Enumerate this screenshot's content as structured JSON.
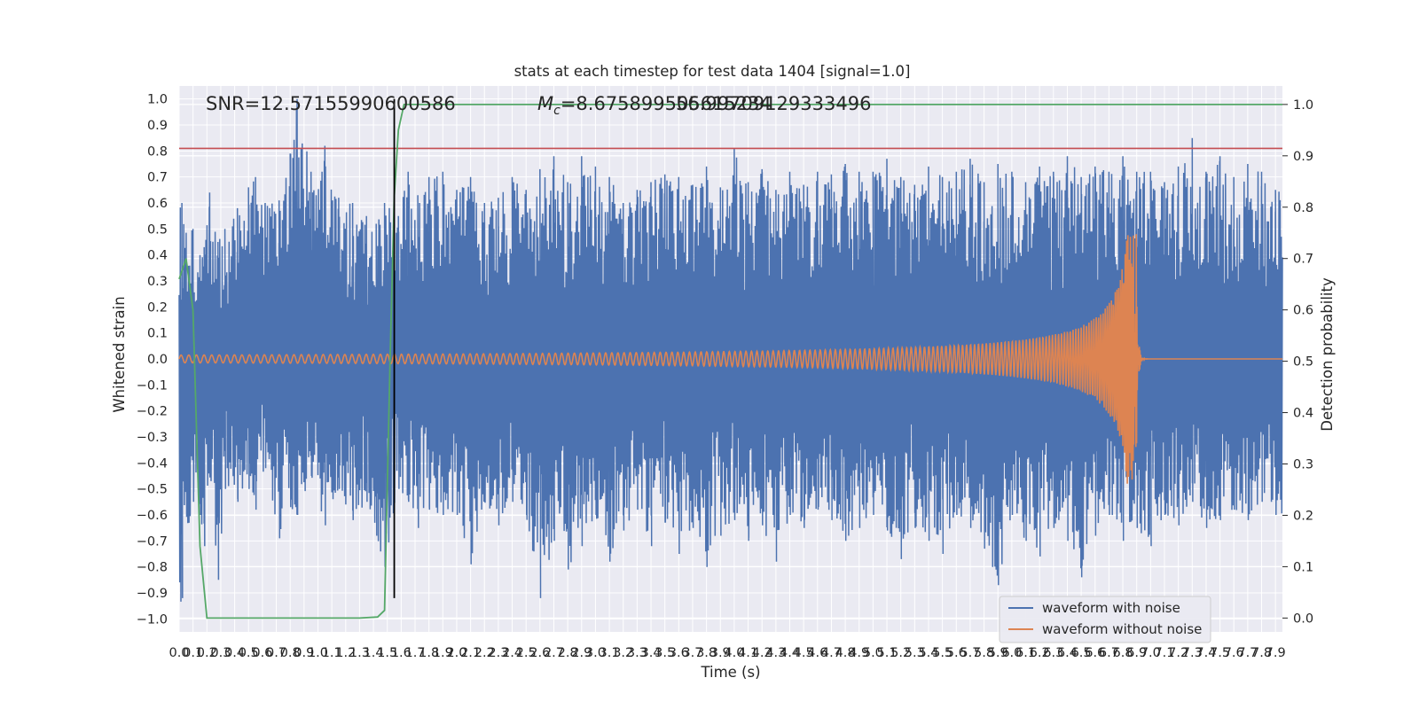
{
  "chart_data": {
    "type": "line",
    "title": "stats at each timestep for test data 1404 [signal=1.0]",
    "xlabel": "Time (s)",
    "ylabel": "Whitened strain",
    "y2label": "Detection probability",
    "xlim": [
      0.0,
      7.95
    ],
    "ylim": [
      -1.05,
      1.05
    ],
    "y2lim": [
      -0.027,
      1.036
    ],
    "x_ticks": [
      "0.0",
      "0.1",
      "0.2",
      "0.3",
      "0.4",
      "0.5",
      "0.6",
      "0.7",
      "0.8",
      "0.9",
      "1.0",
      "1.1",
      "1.2",
      "1.3",
      "1.4",
      "1.5",
      "1.6",
      "1.7",
      "1.8",
      "1.9",
      "2.0",
      "2.1",
      "2.2",
      "2.3",
      "2.4",
      "2.5",
      "2.6",
      "2.7",
      "2.8",
      "2.9",
      "3.0",
      "3.1",
      "3.2",
      "3.3",
      "3.4",
      "3.5",
      "3.6",
      "3.7",
      "3.8",
      "3.9",
      "4.0",
      "4.1",
      "4.2",
      "4.3",
      "4.4",
      "4.5",
      "4.6",
      "4.7",
      "4.8",
      "4.9",
      "5.0",
      "5.1",
      "5.2",
      "5.3",
      "5.4",
      "5.5",
      "5.6",
      "5.7",
      "5.8",
      "5.9",
      "6.0",
      "6.1",
      "6.2",
      "6.3",
      "6.4",
      "6.5",
      "6.6",
      "6.7",
      "6.8",
      "6.9",
      "7.0",
      "7.1",
      "7.2",
      "7.3",
      "7.4",
      "7.5",
      "7.6",
      "7.7",
      "7.8",
      "7.9"
    ],
    "y_ticks": [
      "1.0",
      "0.9",
      "0.8",
      "0.7",
      "0.6",
      "0.5",
      "0.4",
      "0.3",
      "0.2",
      "0.1",
      "0.0",
      "−0.1",
      "−0.2",
      "−0.3",
      "−0.4",
      "−0.5",
      "−0.6",
      "−0.7",
      "−0.8",
      "−0.9",
      "−1.0"
    ],
    "y2_ticks": [
      "1.0",
      "0.9",
      "0.8",
      "0.7",
      "0.6",
      "0.5",
      "0.4",
      "0.3",
      "0.2",
      "0.1",
      "0.0"
    ],
    "annotations": {
      "snr": "SNR=12.57155990600586",
      "mc_a": "M",
      "mc_sub": "c",
      "mc_b": "=8.675899505615234",
      "overlap": "56.99709129333496"
    },
    "threshold_line": {
      "y": 0.81,
      "color": "#c44e52"
    },
    "event_marker": {
      "x": 1.55,
      "y_range": [
        -0.92,
        1.0
      ],
      "color": "#000000"
    },
    "legend": {
      "placement": "lower-right"
    },
    "series": [
      {
        "name": "waveform with noise",
        "color": "#4c72b0",
        "axis": "left",
        "peaks": [
          [
            0.02,
            0.6,
            -0.92
          ],
          [
            0.1,
            0.5,
            -0.55
          ],
          [
            0.15,
            0.4,
            -0.6
          ],
          [
            0.18,
            0.43,
            -0.72
          ],
          [
            0.22,
            0.64,
            -0.45
          ],
          [
            0.28,
            0.45,
            -0.85
          ],
          [
            0.33,
            0.5,
            -0.5
          ],
          [
            0.42,
            0.58,
            -0.55
          ],
          [
            0.5,
            0.66,
            -0.5
          ],
          [
            0.55,
            0.7,
            -0.58
          ],
          [
            0.62,
            0.6,
            -0.42
          ],
          [
            0.72,
            0.61,
            -0.69
          ],
          [
            0.8,
            0.79,
            -0.57
          ],
          [
            0.85,
            1.0,
            -0.6
          ],
          [
            0.95,
            0.72,
            -0.45
          ],
          [
            1.05,
            0.82,
            -0.64
          ],
          [
            1.15,
            0.62,
            -0.5
          ],
          [
            1.25,
            0.6,
            -0.62
          ],
          [
            1.35,
            0.55,
            -0.55
          ],
          [
            1.42,
            0.52,
            -0.68
          ],
          [
            1.48,
            0.6,
            -0.8
          ],
          [
            1.58,
            0.55,
            -0.5
          ],
          [
            1.65,
            0.72,
            -0.55
          ],
          [
            1.72,
            0.63,
            -0.65
          ],
          [
            1.8,
            0.7,
            -0.58
          ],
          [
            1.9,
            0.72,
            -0.6
          ],
          [
            2.0,
            0.65,
            -0.6
          ],
          [
            2.1,
            0.7,
            -0.79
          ],
          [
            2.2,
            0.6,
            -0.55
          ],
          [
            2.3,
            0.62,
            -0.64
          ],
          [
            2.4,
            0.7,
            -0.55
          ],
          [
            2.5,
            0.65,
            -0.6
          ],
          [
            2.6,
            0.73,
            -0.92
          ],
          [
            2.7,
            0.78,
            -0.7
          ],
          [
            2.8,
            0.68,
            -0.81
          ],
          [
            2.9,
            0.78,
            -0.72
          ],
          [
            3.0,
            0.74,
            -0.6
          ],
          [
            3.1,
            0.7,
            -0.78
          ],
          [
            3.2,
            0.6,
            -0.66
          ],
          [
            3.3,
            0.65,
            -0.58
          ],
          [
            3.4,
            0.68,
            -0.72
          ],
          [
            3.5,
            0.71,
            -0.63
          ],
          [
            3.6,
            0.7,
            -0.75
          ],
          [
            3.7,
            0.67,
            -0.65
          ],
          [
            3.8,
            0.74,
            -0.8
          ],
          [
            3.9,
            0.66,
            -0.68
          ],
          [
            4.0,
            0.81,
            -0.62
          ],
          [
            4.1,
            0.68,
            -0.7
          ],
          [
            4.2,
            0.73,
            -0.64
          ],
          [
            4.3,
            0.65,
            -0.78
          ],
          [
            4.4,
            0.72,
            -0.6
          ],
          [
            4.5,
            0.67,
            -0.65
          ],
          [
            4.6,
            0.72,
            -0.58
          ],
          [
            4.7,
            0.71,
            -0.62
          ],
          [
            4.8,
            0.75,
            -0.7
          ],
          [
            4.9,
            0.72,
            -0.65
          ],
          [
            5.0,
            0.72,
            -0.6
          ],
          [
            5.1,
            0.77,
            -0.66
          ],
          [
            5.2,
            0.7,
            -0.77
          ],
          [
            5.3,
            0.67,
            -0.65
          ],
          [
            5.4,
            0.74,
            -0.7
          ],
          [
            5.5,
            0.7,
            -0.75
          ],
          [
            5.6,
            0.72,
            -0.6
          ],
          [
            5.7,
            0.77,
            -0.65
          ],
          [
            5.8,
            0.68,
            -0.73
          ],
          [
            5.9,
            0.75,
            -0.87
          ],
          [
            6.0,
            0.72,
            -0.6
          ],
          [
            6.1,
            0.68,
            -0.7
          ],
          [
            6.2,
            0.74,
            -0.76
          ],
          [
            6.3,
            0.72,
            -0.65
          ],
          [
            6.4,
            0.78,
            -0.7
          ],
          [
            6.5,
            0.7,
            -0.84
          ],
          [
            6.6,
            0.74,
            -0.68
          ],
          [
            6.7,
            0.72,
            -0.6
          ],
          [
            6.8,
            0.78,
            -0.7
          ],
          [
            6.9,
            0.72,
            -0.65
          ],
          [
            7.0,
            0.72,
            -0.72
          ],
          [
            7.1,
            0.68,
            -0.6
          ],
          [
            7.2,
            0.74,
            -0.64
          ],
          [
            7.3,
            0.85,
            -0.55
          ],
          [
            7.4,
            0.72,
            -0.65
          ],
          [
            7.5,
            0.78,
            -0.62
          ],
          [
            7.6,
            0.7,
            -0.58
          ],
          [
            7.7,
            0.75,
            -0.62
          ],
          [
            7.8,
            0.72,
            -0.55
          ],
          [
            7.9,
            0.65,
            -0.6
          ]
        ]
      },
      {
        "name": "waveform without noise",
        "color": "#dd8452",
        "axis": "left",
        "chirp": {
          "f0_hz": 18,
          "coalescence_s": 6.9,
          "amp_start": 0.015,
          "amp_peak": 0.48
        }
      },
      {
        "name": "",
        "color": "#55a868",
        "axis": "right",
        "x": [
          0.0,
          0.05,
          0.1,
          0.15,
          0.2,
          0.3,
          0.5,
          1.0,
          1.3,
          1.43,
          1.48,
          1.52,
          1.55,
          1.58,
          1.62,
          2.0,
          3.0,
          4.0,
          5.0,
          6.0,
          7.0,
          7.95
        ],
        "values": [
          0.66,
          0.7,
          0.6,
          0.14,
          0.0,
          0.0,
          0.0,
          0.0,
          0.0,
          0.002,
          0.015,
          0.5,
          0.82,
          0.95,
          1.0,
          1.0,
          1.0,
          1.0,
          1.0,
          1.0,
          1.0,
          1.0
        ]
      }
    ]
  }
}
